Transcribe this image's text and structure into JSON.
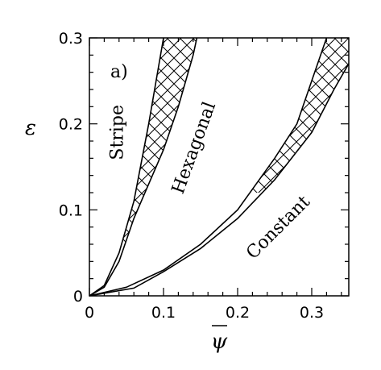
{
  "chart_data": {
    "type": "line",
    "panel_label": "a)",
    "xlabel": "ψ",
    "ylabel": "ε",
    "xlim": [
      0,
      0.35
    ],
    "ylim": [
      0,
      0.3
    ],
    "x_ticks": [
      "0",
      "0.1",
      "0.2",
      "0.3"
    ],
    "x_tick_values": [
      0,
      0.1,
      0.2,
      0.3
    ],
    "y_ticks": [
      "0",
      "0.1",
      "0.2",
      "0.3"
    ],
    "y_tick_values": [
      0,
      0.1,
      0.2,
      0.3
    ],
    "x_minor_step": 0.02,
    "y_minor_step": 0.02,
    "series": [
      {
        "x": [
          0,
          0.02,
          0.04,
          0.06,
          0.08,
          0.09,
          0.1
        ],
        "y": [
          0,
          0.012,
          0.05,
          0.11,
          0.2,
          0.25,
          0.3
        ]
      },
      {
        "x": [
          0,
          0.02,
          0.04,
          0.06,
          0.08,
          0.1,
          0.12,
          0.14,
          0.145
        ],
        "y": [
          0,
          0.01,
          0.04,
          0.09,
          0.13,
          0.17,
          0.22,
          0.28,
          0.3
        ]
      },
      {
        "x": [
          0,
          0.05,
          0.1,
          0.15,
          0.2,
          0.25,
          0.28,
          0.3,
          0.32
        ],
        "y": [
          0,
          0.01,
          0.03,
          0.06,
          0.1,
          0.16,
          0.2,
          0.25,
          0.3
        ]
      },
      {
        "x": [
          0,
          0.06,
          0.1,
          0.15,
          0.2,
          0.25,
          0.3,
          0.33,
          0.35
        ],
        "y": [
          0,
          0.009,
          0.028,
          0.055,
          0.09,
          0.135,
          0.19,
          0.24,
          0.27
        ]
      }
    ],
    "hatched_bands": [
      {
        "lower_series": 0,
        "upper_series": 1,
        "y_from": 0.06,
        "y_to": 0.3
      },
      {
        "lower_series": 2,
        "upper_series": 3,
        "y_from": 0.12,
        "y_to": 0.3
      }
    ],
    "annotations": [
      {
        "text": "Stripe",
        "x": 0.045,
        "y": 0.19,
        "rotation": -90
      },
      {
        "text": "Hexagonal",
        "x": 0.148,
        "y": 0.17,
        "rotation": -70
      },
      {
        "text": "Constant",
        "x": 0.26,
        "y": 0.075,
        "rotation": -45
      }
    ]
  }
}
